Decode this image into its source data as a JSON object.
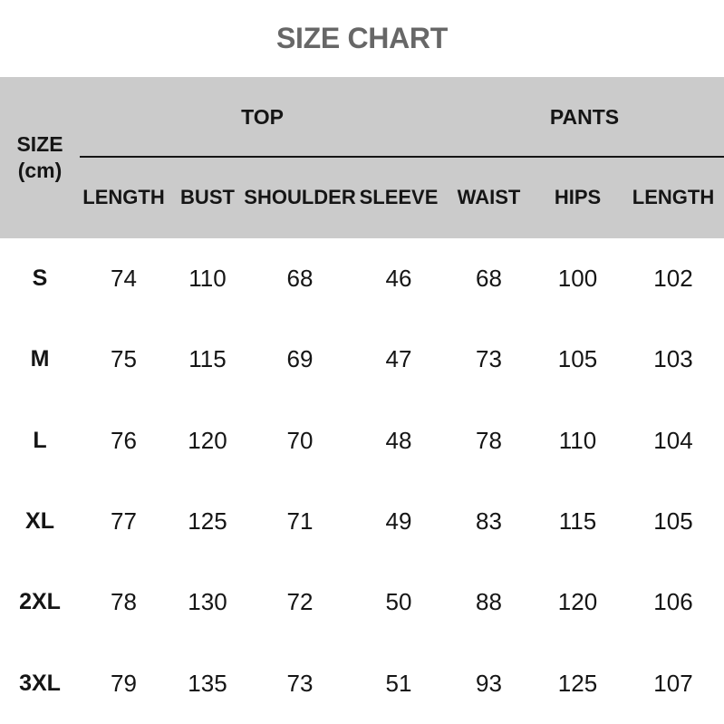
{
  "colors": {
    "page_bg": "#ffffff",
    "header_bg": "#cbcbcb",
    "title_color": "#676767",
    "text_color": "#151515",
    "rule_color": "#141414"
  },
  "chart_data": {
    "type": "table",
    "title": "SIZE CHART",
    "row_header": {
      "line1": "SIZE",
      "line2": "(cm)"
    },
    "column_groups": [
      {
        "label": "TOP",
        "span": 4
      },
      {
        "label": "PANTS",
        "span": 3
      }
    ],
    "columns": [
      "LENGTH",
      "BUST",
      "SHOULDER",
      "SLEEVE",
      "WAIST",
      "HIPS",
      "LENGTH"
    ],
    "rows": [
      {
        "size": "S",
        "values": [
          74,
          110,
          68,
          46,
          68,
          100,
          102
        ]
      },
      {
        "size": "M",
        "values": [
          75,
          115,
          69,
          47,
          73,
          105,
          103
        ]
      },
      {
        "size": "L",
        "values": [
          76,
          120,
          70,
          48,
          78,
          110,
          104
        ]
      },
      {
        "size": "XL",
        "values": [
          77,
          125,
          71,
          49,
          83,
          115,
          105
        ]
      },
      {
        "size": "2XL",
        "values": [
          78,
          130,
          72,
          50,
          88,
          120,
          106
        ]
      },
      {
        "size": "3XL",
        "values": [
          79,
          135,
          73,
          51,
          93,
          125,
          107
        ]
      }
    ]
  }
}
